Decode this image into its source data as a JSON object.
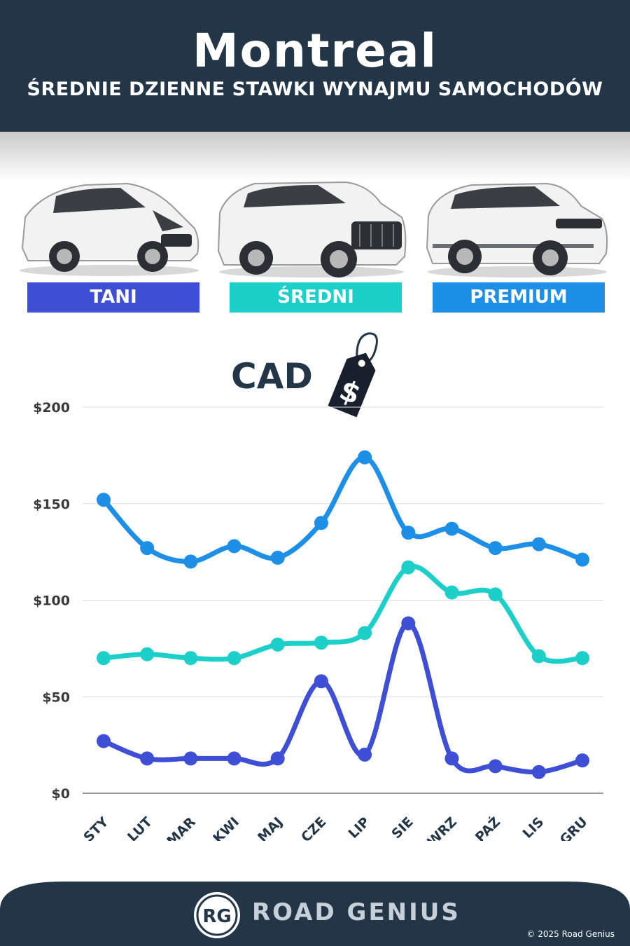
{
  "header": {
    "title": "Montreal",
    "subtitle": "ŚREDNIE DZIENNE STAWKI WYNAJMU SAMOCHODÓW"
  },
  "categories": [
    {
      "label": "TANI",
      "color": "#3e4fd6"
    },
    {
      "label": "ŚREDNI",
      "color": "#1ccfc9"
    },
    {
      "label": "PREMIUM",
      "color": "#1e8fe6"
    }
  ],
  "currency_label": "CAD",
  "tag_symbol": "$",
  "colors": {
    "navy": "#233647",
    "grid": "#dddddd"
  },
  "chart_data": {
    "type": "line",
    "categories": [
      "STY",
      "LUT",
      "MAR",
      "KWI",
      "MAJ",
      "CZE",
      "LIP",
      "SIE",
      "WRZ",
      "PAŹ",
      "LIS",
      "GRU"
    ],
    "ylim": [
      0,
      200
    ],
    "yticks": [
      0,
      50,
      100,
      150,
      200
    ],
    "ytick_labels": [
      "$0",
      "$50",
      "$100",
      "$150",
      "$200"
    ],
    "grid": true,
    "series": [
      {
        "name": "TANI",
        "color": "#3e4fd6",
        "values": [
          27,
          18,
          18,
          18,
          18,
          58,
          20,
          88,
          18,
          14,
          11,
          17
        ]
      },
      {
        "name": "ŚREDNI",
        "color": "#1ccfc9",
        "values": [
          70,
          72,
          70,
          70,
          77,
          78,
          83,
          117,
          104,
          103,
          71,
          70
        ]
      },
      {
        "name": "PREMIUM",
        "color": "#1e8fe6",
        "values": [
          152,
          127,
          120,
          128,
          122,
          140,
          174,
          135,
          137,
          127,
          129,
          121
        ]
      }
    ]
  },
  "footer": {
    "logo_text": "RG",
    "brand": "ROAD GENIUS",
    "copyright": "© 2025 Road Genius"
  }
}
